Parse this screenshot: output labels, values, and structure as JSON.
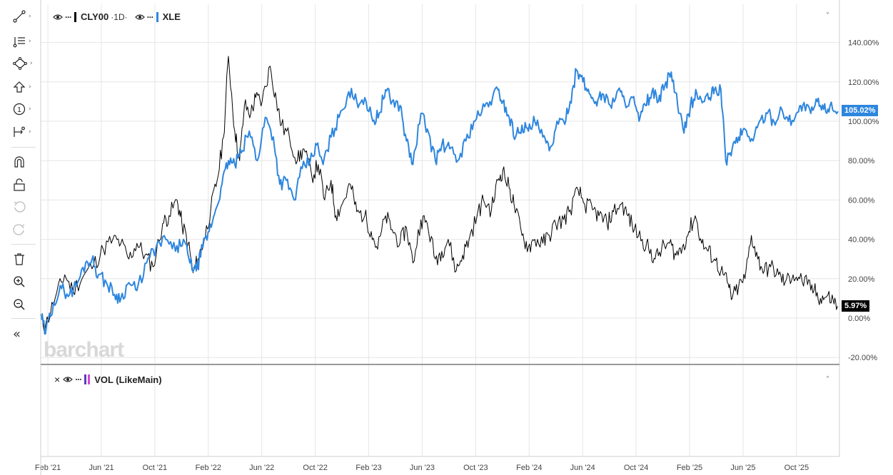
{
  "toolbar": {
    "items": [
      {
        "name": "trendline-tool",
        "icon": "line-drawing-icon"
      },
      {
        "name": "fib-tool",
        "icon": "fibonacci-icon"
      },
      {
        "name": "shapes-tool",
        "icon": "shape-icon"
      },
      {
        "name": "arrow-tool",
        "icon": "arrow-up-icon"
      },
      {
        "name": "annotation-tool",
        "icon": "numbered-circle-icon"
      },
      {
        "name": "measure-tool",
        "icon": "measure-icon"
      },
      {
        "name": "magnet-button",
        "icon": "magnet-icon"
      },
      {
        "name": "lock-button",
        "icon": "unlock-icon"
      },
      {
        "name": "undo-button",
        "icon": "undo-icon"
      },
      {
        "name": "redo-button",
        "icon": "redo-icon"
      },
      {
        "name": "delete-button",
        "icon": "trash-icon"
      },
      {
        "name": "zoom-in-button",
        "icon": "zoom-in-icon"
      },
      {
        "name": "zoom-out-button",
        "icon": "zoom-out-icon"
      },
      {
        "name": "collapse-toolbar-button",
        "icon": "double-chevron-left-icon"
      }
    ],
    "annotation_digit": "1"
  },
  "legend": {
    "main_symbol": "CLY00",
    "interval": "·1D·",
    "compare_symbol": "XLE",
    "dots": "···"
  },
  "volume_pane": {
    "close": "×",
    "dots": "···",
    "label": "VOL (LikeMain)"
  },
  "chevrons": {
    "collapse_main": "˅",
    "collapse_volume": "˄",
    "toolbar_caret": "›",
    "collapse_toolbar": "«"
  },
  "watermark": "barchart",
  "colors": {
    "main_series": "#000000",
    "compare_series": "#2e86de",
    "volume_swatch_1": "#5b3cc4",
    "volume_swatch_2": "#d04ad0"
  },
  "chart_data": {
    "type": "line",
    "x_labels": [
      "Feb '21",
      "Jun '21",
      "Oct '21",
      "Feb '22",
      "Jun '22",
      "Oct '22",
      "Feb '23",
      "Jun '23",
      "Oct '23",
      "Feb '24",
      "Jun '24",
      "Oct '24",
      "Feb '25",
      "Jun '25",
      "Oct '25"
    ],
    "y_ticks": [
      "140.00%",
      "120.00%",
      "100.00%",
      "80.00%",
      "60.00%",
      "40.00%",
      "20.00%",
      "0.00%",
      "-20.00%"
    ],
    "y_tick_values": [
      140,
      120,
      100,
      80,
      60,
      40,
      20,
      0,
      -20
    ],
    "ylim": [
      -20,
      140
    ],
    "x_range": [
      2021.0,
      2025.97
    ],
    "series": [
      {
        "name": "CLY00",
        "color": "#000000",
        "last_label": "5.97%",
        "points": [
          [
            2021.0,
            0
          ],
          [
            2021.03,
            -4
          ],
          [
            2021.09,
            10
          ],
          [
            2021.15,
            22
          ],
          [
            2021.2,
            14
          ],
          [
            2021.27,
            22
          ],
          [
            2021.33,
            27
          ],
          [
            2021.39,
            35
          ],
          [
            2021.45,
            40
          ],
          [
            2021.5,
            38
          ],
          [
            2021.55,
            30
          ],
          [
            2021.6,
            38
          ],
          [
            2021.65,
            32
          ],
          [
            2021.7,
            26
          ],
          [
            2021.76,
            48
          ],
          [
            2021.8,
            52
          ],
          [
            2021.85,
            60
          ],
          [
            2021.88,
            48
          ],
          [
            2021.92,
            38
          ],
          [
            2021.95,
            23
          ],
          [
            2021.98,
            30
          ],
          [
            2022.02,
            40
          ],
          [
            2022.06,
            55
          ],
          [
            2022.1,
            70
          ],
          [
            2022.14,
            92
          ],
          [
            2022.17,
            133
          ],
          [
            2022.21,
            95
          ],
          [
            2022.24,
            80
          ],
          [
            2022.27,
            108
          ],
          [
            2022.31,
            104
          ],
          [
            2022.34,
            112
          ],
          [
            2022.38,
            110
          ],
          [
            2022.43,
            128
          ],
          [
            2022.47,
            110
          ],
          [
            2022.5,
            98
          ],
          [
            2022.55,
            92
          ],
          [
            2022.6,
            80
          ],
          [
            2022.64,
            86
          ],
          [
            2022.69,
            72
          ],
          [
            2022.73,
            78
          ],
          [
            2022.77,
            60
          ],
          [
            2022.81,
            70
          ],
          [
            2022.84,
            52
          ],
          [
            2022.88,
            58
          ],
          [
            2022.93,
            68
          ],
          [
            2022.97,
            54
          ],
          [
            2023.02,
            52
          ],
          [
            2023.06,
            44
          ],
          [
            2023.1,
            35
          ],
          [
            2023.15,
            52
          ],
          [
            2023.19,
            45
          ],
          [
            2023.24,
            38
          ],
          [
            2023.28,
            46
          ],
          [
            2023.32,
            28
          ],
          [
            2023.37,
            50
          ],
          [
            2023.41,
            48
          ],
          [
            2023.46,
            30
          ],
          [
            2023.5,
            34
          ],
          [
            2023.54,
            40
          ],
          [
            2023.59,
            24
          ],
          [
            2023.63,
            32
          ],
          [
            2023.67,
            40
          ],
          [
            2023.72,
            52
          ],
          [
            2023.76,
            60
          ],
          [
            2023.81,
            55
          ],
          [
            2023.85,
            70
          ],
          [
            2023.88,
            75
          ],
          [
            2023.92,
            66
          ],
          [
            2023.95,
            58
          ],
          [
            2024.0,
            42
          ],
          [
            2024.04,
            36
          ],
          [
            2024.08,
            40
          ],
          [
            2024.13,
            38
          ],
          [
            2024.17,
            42
          ],
          [
            2024.21,
            48
          ],
          [
            2024.26,
            50
          ],
          [
            2024.3,
            55
          ],
          [
            2024.35,
            65
          ],
          [
            2024.39,
            58
          ],
          [
            2024.44,
            55
          ],
          [
            2024.48,
            52
          ],
          [
            2024.53,
            48
          ],
          [
            2024.57,
            54
          ],
          [
            2024.62,
            58
          ],
          [
            2024.66,
            52
          ],
          [
            2024.7,
            45
          ],
          [
            2024.75,
            40
          ],
          [
            2024.79,
            35
          ],
          [
            2024.83,
            30
          ],
          [
            2024.87,
            35
          ],
          [
            2024.92,
            38
          ],
          [
            2024.96,
            32
          ],
          [
            2025.0,
            36
          ],
          [
            2025.04,
            44
          ],
          [
            2025.08,
            52
          ],
          [
            2025.12,
            38
          ],
          [
            2025.16,
            34
          ],
          [
            2025.2,
            30
          ],
          [
            2025.24,
            24
          ],
          [
            2025.28,
            18
          ],
          [
            2025.31,
            10
          ],
          [
            2025.35,
            16
          ],
          [
            2025.39,
            20
          ],
          [
            2025.43,
            42
          ],
          [
            2025.47,
            30
          ],
          [
            2025.51,
            24
          ],
          [
            2025.55,
            26
          ],
          [
            2025.6,
            22
          ],
          [
            2025.64,
            18
          ],
          [
            2025.69,
            22
          ],
          [
            2025.73,
            20
          ],
          [
            2025.78,
            17
          ],
          [
            2025.82,
            14
          ],
          [
            2025.86,
            10
          ],
          [
            2025.9,
            11
          ],
          [
            2025.94,
            9
          ],
          [
            2025.97,
            5.97
          ]
        ]
      },
      {
        "name": "XLE",
        "color": "#2e86de",
        "last_label": "105.02%",
        "points": [
          [
            2021.0,
            2
          ],
          [
            2021.03,
            -8
          ],
          [
            2021.08,
            8
          ],
          [
            2021.13,
            15
          ],
          [
            2021.18,
            12
          ],
          [
            2021.23,
            18
          ],
          [
            2021.28,
            28
          ],
          [
            2021.32,
            30
          ],
          [
            2021.36,
            22
          ],
          [
            2021.41,
            18
          ],
          [
            2021.46,
            12
          ],
          [
            2021.5,
            10
          ],
          [
            2021.55,
            18
          ],
          [
            2021.6,
            14
          ],
          [
            2021.66,
            28
          ],
          [
            2021.72,
            36
          ],
          [
            2021.78,
            40
          ],
          [
            2021.84,
            34
          ],
          [
            2021.89,
            40
          ],
          [
            2021.93,
            28
          ],
          [
            2021.97,
            24
          ],
          [
            2022.01,
            36
          ],
          [
            2022.05,
            44
          ],
          [
            2022.09,
            55
          ],
          [
            2022.13,
            68
          ],
          [
            2022.17,
            80
          ],
          [
            2022.21,
            78
          ],
          [
            2022.25,
            84
          ],
          [
            2022.3,
            95
          ],
          [
            2022.35,
            80
          ],
          [
            2022.4,
            102
          ],
          [
            2022.45,
            92
          ],
          [
            2022.49,
            68
          ],
          [
            2022.53,
            70
          ],
          [
            2022.58,
            60
          ],
          [
            2022.63,
            76
          ],
          [
            2022.68,
            80
          ],
          [
            2022.72,
            88
          ],
          [
            2022.76,
            78
          ],
          [
            2022.81,
            92
          ],
          [
            2022.86,
            102
          ],
          [
            2022.92,
            115
          ],
          [
            2022.97,
            110
          ],
          [
            2023.02,
            112
          ],
          [
            2023.07,
            100
          ],
          [
            2023.11,
            104
          ],
          [
            2023.15,
            116
          ],
          [
            2023.19,
            110
          ],
          [
            2023.24,
            108
          ],
          [
            2023.28,
            90
          ],
          [
            2023.32,
            78
          ],
          [
            2023.37,
            104
          ],
          [
            2023.41,
            96
          ],
          [
            2023.46,
            80
          ],
          [
            2023.5,
            88
          ],
          [
            2023.55,
            86
          ],
          [
            2023.6,
            80
          ],
          [
            2023.65,
            90
          ],
          [
            2023.7,
            100
          ],
          [
            2023.75,
            105
          ],
          [
            2023.8,
            110
          ],
          [
            2023.85,
            116
          ],
          [
            2023.88,
            110
          ],
          [
            2023.92,
            102
          ],
          [
            2023.96,
            92
          ],
          [
            2024.0,
            98
          ],
          [
            2024.04,
            95
          ],
          [
            2024.08,
            100
          ],
          [
            2024.13,
            92
          ],
          [
            2024.17,
            85
          ],
          [
            2024.21,
            96
          ],
          [
            2024.26,
            100
          ],
          [
            2024.3,
            110
          ],
          [
            2024.34,
            126
          ],
          [
            2024.38,
            120
          ],
          [
            2024.42,
            114
          ],
          [
            2024.46,
            110
          ],
          [
            2024.5,
            114
          ],
          [
            2024.55,
            108
          ],
          [
            2024.6,
            116
          ],
          [
            2024.64,
            110
          ],
          [
            2024.69,
            112
          ],
          [
            2024.73,
            100
          ],
          [
            2024.77,
            108
          ],
          [
            2024.81,
            115
          ],
          [
            2024.85,
            110
          ],
          [
            2024.89,
            118
          ],
          [
            2024.93,
            125
          ],
          [
            2024.97,
            108
          ],
          [
            2025.01,
            94
          ],
          [
            2025.05,
            108
          ],
          [
            2025.09,
            114
          ],
          [
            2025.13,
            110
          ],
          [
            2025.17,
            112
          ],
          [
            2025.2,
            116
          ],
          [
            2025.24,
            116
          ],
          [
            2025.27,
            80
          ],
          [
            2025.31,
            86
          ],
          [
            2025.35,
            92
          ],
          [
            2025.39,
            96
          ],
          [
            2025.44,
            90
          ],
          [
            2025.48,
            100
          ],
          [
            2025.53,
            104
          ],
          [
            2025.57,
            100
          ],
          [
            2025.62,
            106
          ],
          [
            2025.66,
            100
          ],
          [
            2025.71,
            104
          ],
          [
            2025.75,
            108
          ],
          [
            2025.8,
            104
          ],
          [
            2025.84,
            110
          ],
          [
            2025.88,
            106
          ],
          [
            2025.92,
            108
          ],
          [
            2025.97,
            105.02
          ]
        ]
      }
    ]
  }
}
